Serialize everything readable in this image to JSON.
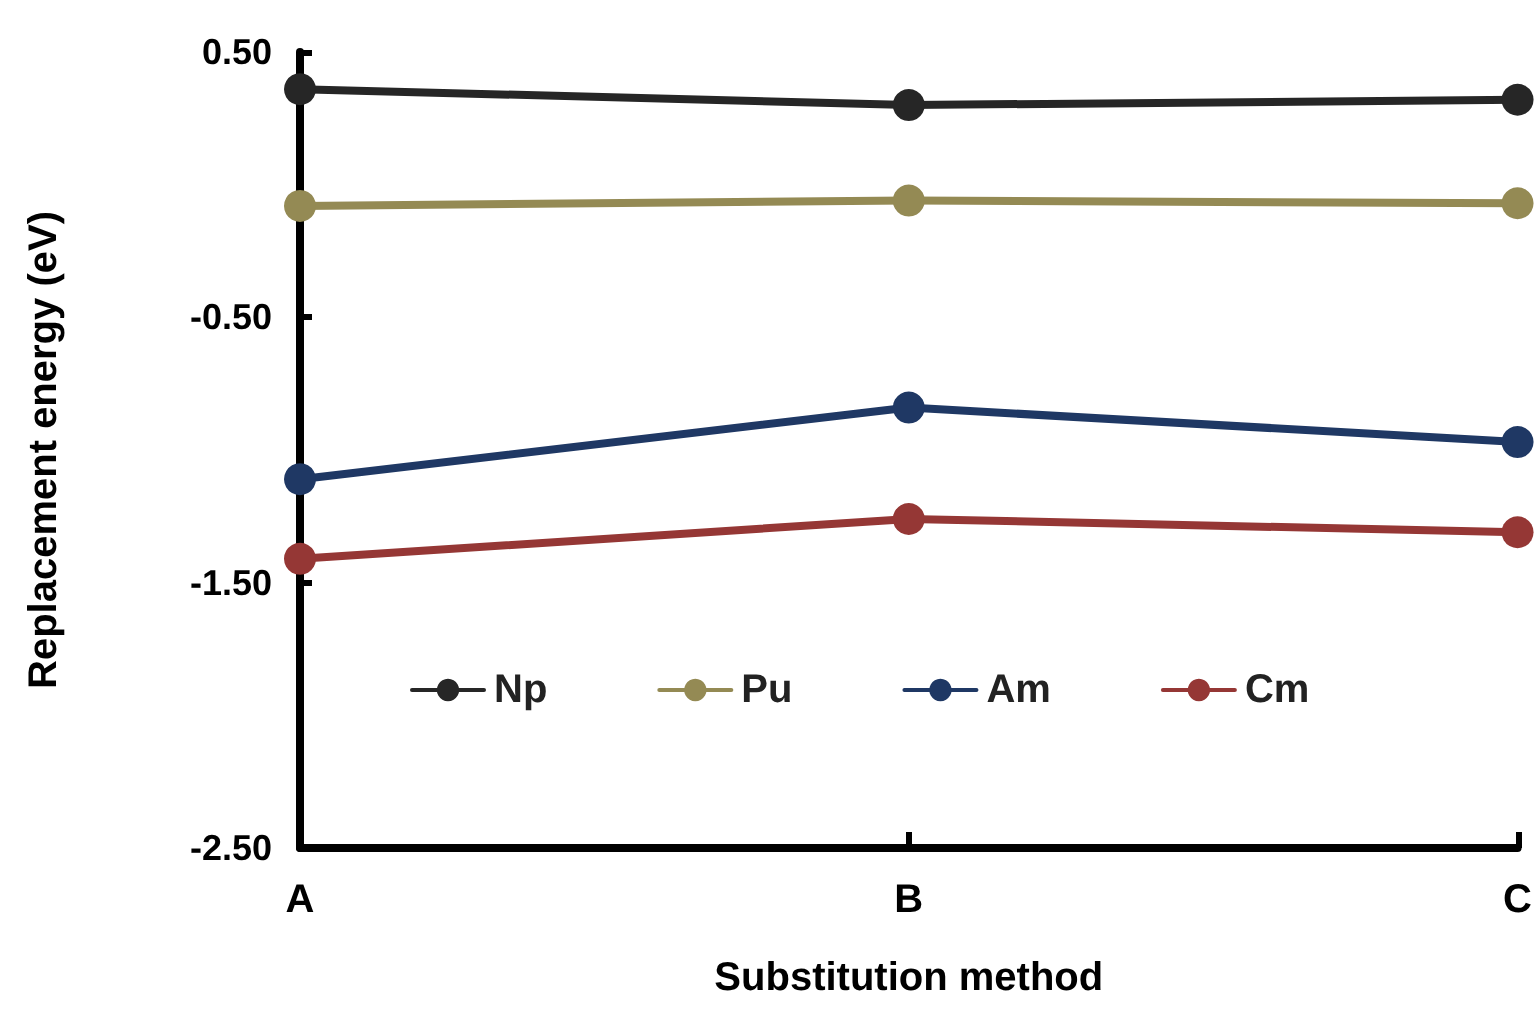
{
  "chart_data": {
    "type": "line",
    "xlabel": "Substitution method",
    "ylabel": "Replacement energy (eV)",
    "categories": [
      "A",
      "B",
      "C"
    ],
    "series": [
      {
        "name": "Np",
        "color": "#262626",
        "values": [
          0.36,
          0.3,
          0.32
        ]
      },
      {
        "name": "Pu",
        "color": "#948a54",
        "values": [
          -0.08,
          -0.06,
          -0.07
        ]
      },
      {
        "name": "Am",
        "color": "#1f3864",
        "values": [
          -1.11,
          -0.84,
          -0.97
        ]
      },
      {
        "name": "Cm",
        "color": "#953735",
        "values": [
          -1.41,
          -1.26,
          -1.31
        ]
      }
    ],
    "ylim": [
      -2.5,
      0.5
    ],
    "yticks": [
      {
        "value": -2.5,
        "label": "-2.50"
      },
      {
        "value": -1.5,
        "label": "-1.50"
      },
      {
        "value": -0.5,
        "label": "-0.50"
      },
      {
        "value": 0.5,
        "label": "0.50"
      }
    ],
    "grid": false,
    "legend": "bottom",
    "marker": "circle",
    "line_style": "solid"
  }
}
